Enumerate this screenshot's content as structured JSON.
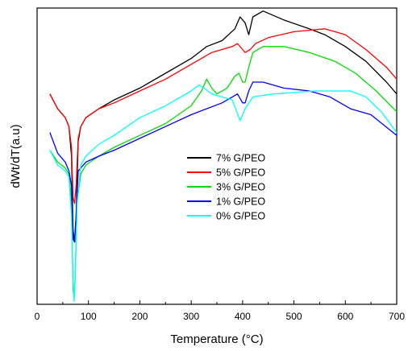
{
  "chart_data": {
    "type": "line",
    "title": "",
    "xlabel": "Temperature (°C)",
    "ylabel": "dWt/dT(a.u)",
    "xlim": [
      0,
      700
    ],
    "ylim": [
      0,
      100
    ],
    "x_ticks": [
      0,
      100,
      200,
      300,
      400,
      500,
      600,
      700
    ],
    "y_ticks_shown": false,
    "grid": false,
    "legend_position": "center-right",
    "series": [
      {
        "name": "7% G/PEO",
        "color": "#000000",
        "points": [
          [
            25,
            71
          ],
          [
            40,
            66
          ],
          [
            55,
            63
          ],
          [
            62,
            60
          ],
          [
            67,
            50
          ],
          [
            70,
            25
          ],
          [
            73,
            21
          ],
          [
            76,
            30
          ],
          [
            80,
            55
          ],
          [
            85,
            60
          ],
          [
            95,
            63
          ],
          [
            120,
            66
          ],
          [
            150,
            69
          ],
          [
            200,
            73
          ],
          [
            250,
            78
          ],
          [
            300,
            83
          ],
          [
            330,
            87
          ],
          [
            360,
            89
          ],
          [
            385,
            93
          ],
          [
            395,
            97
          ],
          [
            405,
            95
          ],
          [
            412,
            91
          ],
          [
            420,
            97
          ],
          [
            440,
            99
          ],
          [
            480,
            96
          ],
          [
            530,
            93
          ],
          [
            560,
            91
          ],
          [
            600,
            87
          ],
          [
            640,
            82
          ],
          [
            680,
            75
          ],
          [
            700,
            71
          ]
        ]
      },
      {
        "name": "5% G/PEO",
        "color": "#ff0000",
        "points": [
          [
            25,
            71
          ],
          [
            40,
            66
          ],
          [
            55,
            63
          ],
          [
            62,
            60
          ],
          [
            67,
            53
          ],
          [
            70,
            36
          ],
          [
            73,
            34
          ],
          [
            76,
            40
          ],
          [
            80,
            56
          ],
          [
            85,
            60
          ],
          [
            95,
            63
          ],
          [
            120,
            66
          ],
          [
            150,
            68
          ],
          [
            200,
            72
          ],
          [
            250,
            76
          ],
          [
            300,
            81
          ],
          [
            340,
            85
          ],
          [
            360,
            86
          ],
          [
            380,
            87
          ],
          [
            390,
            88
          ],
          [
            400,
            86
          ],
          [
            405,
            85
          ],
          [
            415,
            86
          ],
          [
            425,
            88
          ],
          [
            450,
            90
          ],
          [
            500,
            92
          ],
          [
            560,
            93
          ],
          [
            600,
            91
          ],
          [
            640,
            86
          ],
          [
            680,
            80
          ],
          [
            700,
            76
          ]
        ]
      },
      {
        "name": "3% G/PEO",
        "color": "#00dd00",
        "points": [
          [
            25,
            52
          ],
          [
            40,
            48
          ],
          [
            55,
            46
          ],
          [
            62,
            44
          ],
          [
            67,
            35
          ],
          [
            70,
            5
          ],
          [
            72,
            2
          ],
          [
            74,
            8
          ],
          [
            78,
            35
          ],
          [
            85,
            44
          ],
          [
            95,
            47
          ],
          [
            120,
            50
          ],
          [
            150,
            53
          ],
          [
            200,
            57
          ],
          [
            250,
            61
          ],
          [
            300,
            67
          ],
          [
            320,
            72
          ],
          [
            330,
            76
          ],
          [
            340,
            73
          ],
          [
            350,
            71
          ],
          [
            370,
            73
          ],
          [
            385,
            77
          ],
          [
            393,
            78
          ],
          [
            400,
            75
          ],
          [
            405,
            75
          ],
          [
            412,
            80
          ],
          [
            420,
            85
          ],
          [
            440,
            87
          ],
          [
            480,
            87
          ],
          [
            530,
            85
          ],
          [
            580,
            82
          ],
          [
            620,
            78
          ],
          [
            660,
            72
          ],
          [
            700,
            65
          ]
        ]
      },
      {
        "name": "1% G/PEO",
        "color": "#0000ff",
        "points": [
          [
            25,
            58
          ],
          [
            40,
            51
          ],
          [
            55,
            48
          ],
          [
            62,
            45
          ],
          [
            67,
            40
          ],
          [
            70,
            22
          ],
          [
            73,
            21
          ],
          [
            76,
            30
          ],
          [
            80,
            45
          ],
          [
            85,
            46
          ],
          [
            95,
            48
          ],
          [
            120,
            50
          ],
          [
            150,
            52
          ],
          [
            200,
            56
          ],
          [
            250,
            60
          ],
          [
            300,
            64
          ],
          [
            330,
            66
          ],
          [
            360,
            68
          ],
          [
            380,
            70
          ],
          [
            390,
            71
          ],
          [
            400,
            68
          ],
          [
            405,
            68
          ],
          [
            412,
            72
          ],
          [
            420,
            75
          ],
          [
            440,
            75
          ],
          [
            480,
            73
          ],
          [
            530,
            72
          ],
          [
            570,
            70
          ],
          [
            610,
            66
          ],
          [
            650,
            64
          ],
          [
            700,
            57
          ]
        ]
      },
      {
        "name": "0% G/PEO",
        "color": "#00ffff",
        "points": [
          [
            25,
            52
          ],
          [
            40,
            47
          ],
          [
            55,
            45
          ],
          [
            62,
            43
          ],
          [
            67,
            30
          ],
          [
            70,
            8
          ],
          [
            72,
            1
          ],
          [
            74,
            8
          ],
          [
            78,
            34
          ],
          [
            85,
            47
          ],
          [
            95,
            50
          ],
          [
            120,
            54
          ],
          [
            150,
            57
          ],
          [
            200,
            63
          ],
          [
            250,
            67
          ],
          [
            300,
            72
          ],
          [
            315,
            74
          ],
          [
            325,
            73
          ],
          [
            340,
            71
          ],
          [
            360,
            70
          ],
          [
            380,
            69
          ],
          [
            395,
            62
          ],
          [
            405,
            66
          ],
          [
            420,
            70
          ],
          [
            460,
            71
          ],
          [
            500,
            71.5
          ],
          [
            540,
            72
          ],
          [
            580,
            72
          ],
          [
            610,
            72
          ],
          [
            640,
            70
          ],
          [
            670,
            65
          ],
          [
            700,
            58
          ]
        ]
      }
    ]
  }
}
